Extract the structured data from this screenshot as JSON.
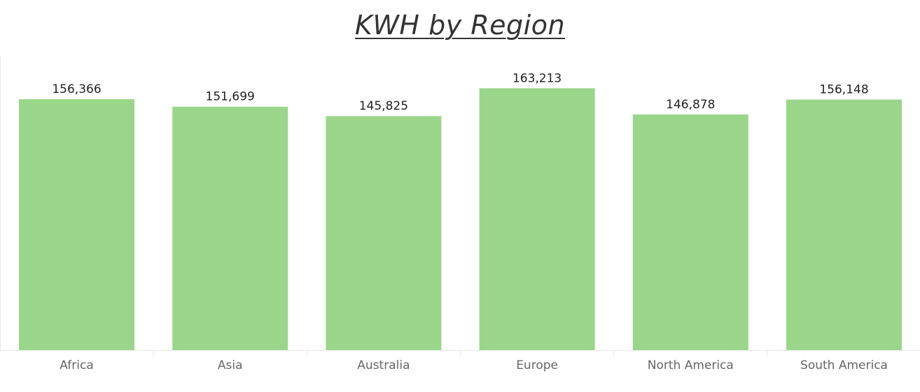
{
  "chart_data": {
    "type": "bar",
    "title": "KWH by Region",
    "categories": [
      "Africa",
      "Asia",
      "Australia",
      "Europe",
      "North America",
      "South America"
    ],
    "values": [
      156366,
      151699,
      145825,
      163213,
      146878,
      156148
    ],
    "value_labels": [
      "156,366",
      "151,699",
      "145,825",
      "163,213",
      "146,878",
      "156,148"
    ],
    "xlabel": "",
    "ylabel": "",
    "ylim": [
      0,
      176000
    ],
    "grid": false,
    "legend": "none",
    "bar_color": "#9AD68A",
    "axis_color": "#E6E6E6"
  }
}
